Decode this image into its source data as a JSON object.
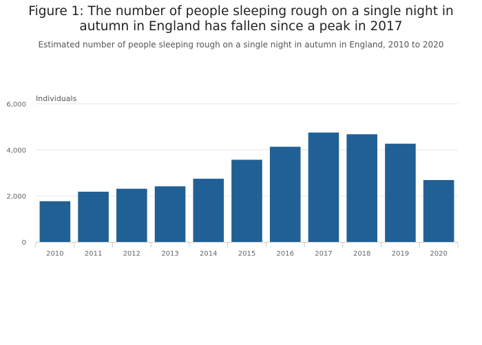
{
  "title": "Figure 1: The number of people sleeping rough on a single night in autumn in England has fallen since a peak in 2017",
  "subtitle": "Estimated number of people sleeping rough on a single night in autumn in England, 2010 to 2020",
  "colors": {
    "bar": "#206095",
    "grid": "#e6e6e6",
    "axis": "#cccccc",
    "tick_text": "#666666",
    "title_text": "#222222"
  },
  "chart_data": {
    "type": "bar",
    "title": "Figure 1: The number of people sleeping rough on a single night in autumn in England has fallen since a peak in 2017",
    "subtitle": "Estimated number of people sleeping rough on a single night in autumn in England, 2010 to 2020",
    "ylabel": "Individuals",
    "xlabel": "",
    "categories": [
      "2010",
      "2011",
      "2012",
      "2013",
      "2014",
      "2015",
      "2016",
      "2017",
      "2018",
      "2019",
      "2020"
    ],
    "values": [
      1768,
      2181,
      2309,
      2414,
      2744,
      3569,
      4134,
      4751,
      4677,
      4266,
      2688
    ],
    "ylim": [
      0,
      6000
    ],
    "yticks": [
      0,
      2000,
      4000,
      6000
    ],
    "ytick_labels": [
      "0",
      "2,000",
      "4,000",
      "6,000"
    ],
    "grid": true,
    "legend": "none"
  }
}
